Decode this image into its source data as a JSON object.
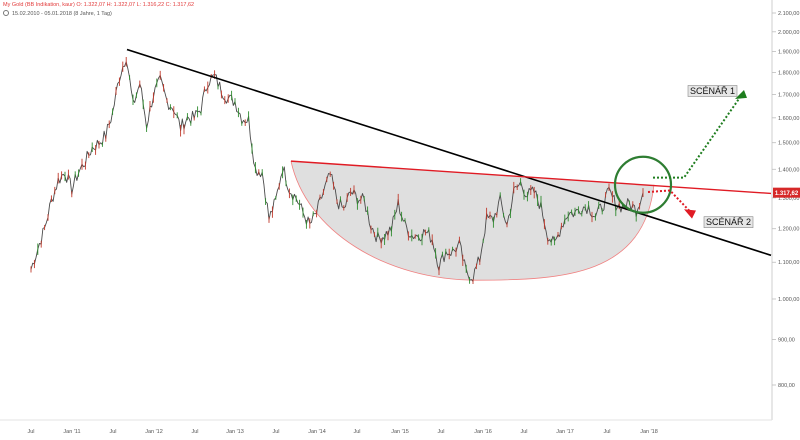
{
  "header": {
    "instrument": "My Gold (BB Indikation, kaur)",
    "ohlc": "O: 1.322,07  H: 1.322,07  L: 1.316,22  C: 1.317,62",
    "range": "15.02.2010 - 05.01.2018 (8 Jahre, 1 Tag)"
  },
  "chart_data": {
    "type": "line",
    "subtype": "candlestick-style price chart",
    "title": "My Gold (BB Indikation, kaur)",
    "x_tick_labels": [
      "Jul",
      "Jan '11",
      "Jul",
      "Jan '12",
      "Jul",
      "Jan '13",
      "Jul",
      "Jan '14",
      "Jul",
      "Jan '15",
      "Jul",
      "Jan '16",
      "Jul",
      "Jan '17",
      "Jul",
      "Jan '18"
    ],
    "y_scale": "log",
    "y_ticks": [
      "2.100,00",
      "2.000,00",
      "1.900,00",
      "1.800,00",
      "1.700,00",
      "1.600,00",
      "1.500,00",
      "1.400,00",
      "1.300,00",
      "1.200,00",
      "1.100,00",
      "1.000,00",
      "900,00",
      "800,00"
    ],
    "y_tick_values": [
      2100,
      2000,
      1900,
      1800,
      1700,
      1600,
      1500,
      1400,
      1300,
      1200,
      1100,
      1000,
      900,
      800
    ],
    "ylim": [
      720,
      2200
    ],
    "current_price_label": "1.317,62",
    "current_price": 1317.62,
    "price_path": [
      [
        "2010-07",
        1080
      ],
      [
        "2010-08",
        1140
      ],
      [
        "2010-09",
        1200
      ],
      [
        "2010-10",
        1290
      ],
      [
        "2010-11",
        1360
      ],
      [
        "2010-12",
        1390
      ],
      [
        "2011-01",
        1330
      ],
      [
        "2011-02",
        1390
      ],
      [
        "2011-03",
        1430
      ],
      [
        "2011-04",
        1480
      ],
      [
        "2011-05",
        1500
      ],
      [
        "2011-06",
        1530
      ],
      [
        "2011-07",
        1620
      ],
      [
        "2011-08",
        1780
      ],
      [
        "2011-09",
        1880
      ],
      [
        "2011-10",
        1650
      ],
      [
        "2011-11",
        1750
      ],
      [
        "2011-12",
        1570
      ],
      [
        "2012-01",
        1700
      ],
      [
        "2012-02",
        1760
      ],
      [
        "2012-03",
        1670
      ],
      [
        "2012-04",
        1640
      ],
      [
        "2012-05",
        1560
      ],
      [
        "2012-06",
        1600
      ],
      [
        "2012-07",
        1600
      ],
      [
        "2012-08",
        1640
      ],
      [
        "2012-09",
        1760
      ],
      [
        "2012-10",
        1780
      ],
      [
        "2012-11",
        1720
      ],
      [
        "2012-12",
        1680
      ],
      [
        "2013-01",
        1670
      ],
      [
        "2013-02",
        1600
      ],
      [
        "2013-03",
        1590
      ],
      [
        "2013-04",
        1400
      ],
      [
        "2013-05",
        1390
      ],
      [
        "2013-06",
        1230
      ],
      [
        "2013-07",
        1290
      ],
      [
        "2013-08",
        1410
      ],
      [
        "2013-09",
        1330
      ],
      [
        "2013-10",
        1300
      ],
      [
        "2013-11",
        1250
      ],
      [
        "2013-12",
        1210
      ],
      [
        "2014-01",
        1250
      ],
      [
        "2014-02",
        1320
      ],
      [
        "2014-03",
        1380
      ],
      [
        "2014-04",
        1290
      ],
      [
        "2014-05",
        1260
      ],
      [
        "2014-06",
        1320
      ],
      [
        "2014-07",
        1300
      ],
      [
        "2014-08",
        1290
      ],
      [
        "2014-09",
        1210
      ],
      [
        "2014-10",
        1170
      ],
      [
        "2014-11",
        1180
      ],
      [
        "2014-12",
        1200
      ],
      [
        "2015-01",
        1280
      ],
      [
        "2015-02",
        1210
      ],
      [
        "2015-03",
        1180
      ],
      [
        "2015-04",
        1180
      ],
      [
        "2015-05",
        1190
      ],
      [
        "2015-06",
        1170
      ],
      [
        "2015-07",
        1090
      ],
      [
        "2015-08",
        1130
      ],
      [
        "2015-09",
        1130
      ],
      [
        "2015-10",
        1150
      ],
      [
        "2015-11",
        1070
      ],
      [
        "2015-12",
        1060
      ],
      [
        "2016-01",
        1110
      ],
      [
        "2016-02",
        1230
      ],
      [
        "2016-03",
        1230
      ],
      [
        "2016-04",
        1290
      ],
      [
        "2016-05",
        1210
      ],
      [
        "2016-06",
        1320
      ],
      [
        "2016-07",
        1350
      ],
      [
        "2016-08",
        1310
      ],
      [
        "2016-09",
        1320
      ],
      [
        "2016-10",
        1270
      ],
      [
        "2016-11",
        1180
      ],
      [
        "2016-12",
        1150
      ],
      [
        "2017-01",
        1210
      ],
      [
        "2017-02",
        1250
      ],
      [
        "2017-03",
        1250
      ],
      [
        "2017-04",
        1270
      ],
      [
        "2017-05",
        1270
      ],
      [
        "2017-06",
        1240
      ],
      [
        "2017-07",
        1270
      ],
      [
        "2017-08",
        1320
      ],
      [
        "2017-09",
        1280
      ],
      [
        "2017-10",
        1270
      ],
      [
        "2017-11",
        1280
      ],
      [
        "2017-12",
        1260
      ],
      [
        "2018-01",
        1318
      ]
    ],
    "annotations": {
      "scenario_1_label": "SCÉNÁŘ 1",
      "scenario_2_label": "SCÉNÁŘ 2",
      "long_trendline": "black descending line from the 2011 high",
      "red_line": "red horizontal resistance",
      "bowl": "shaded rounding-bottom (cup)",
      "circle": "green circle at the current breakout area"
    },
    "grid": false,
    "legend": "none"
  },
  "colors": {
    "price": "#4a4a4a",
    "up": "#2e8b2e",
    "down": "#c0392b",
    "trendline": "#000000",
    "resistance": "#e01b24",
    "bowl_fill": "#d9d9d9",
    "bowl_edge": "#f08080",
    "circle": "#2e7d32",
    "scenario_1": "#1e7d1e",
    "scenario_2": "#e01b24",
    "badge": "#d62828"
  }
}
